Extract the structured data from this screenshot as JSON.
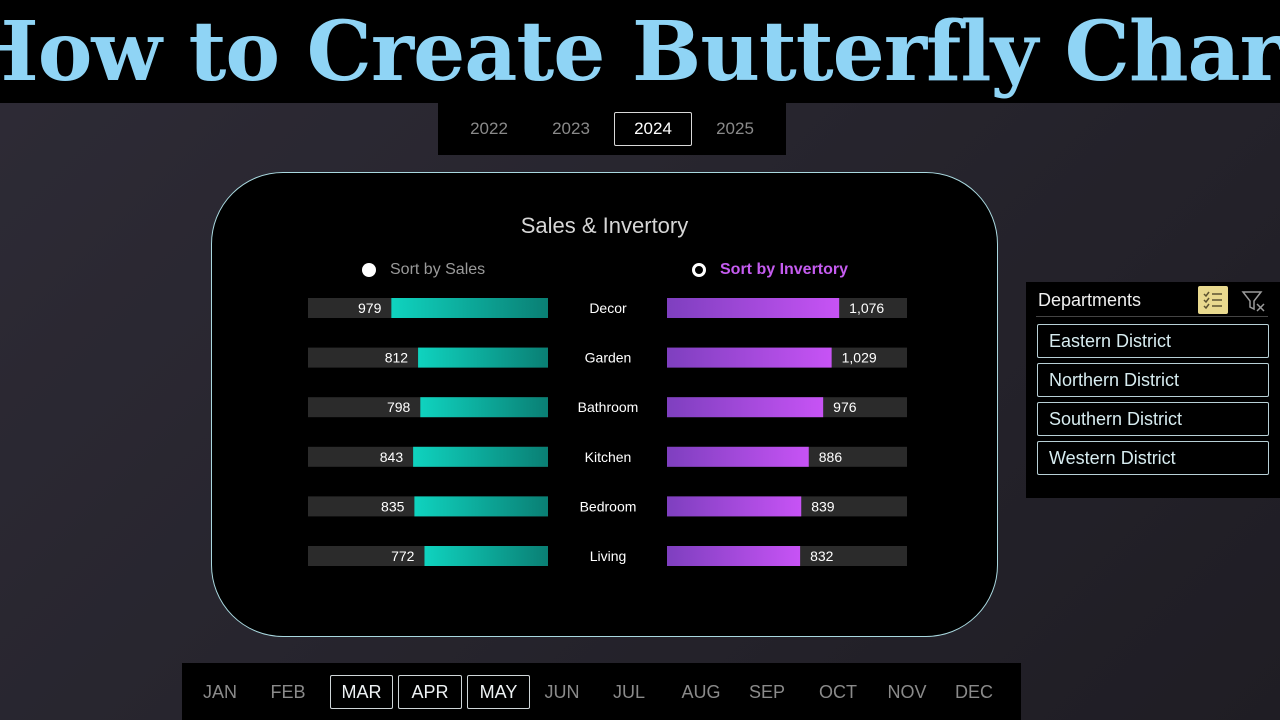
{
  "title": "How to Create Butterfly Chart",
  "years": {
    "items": [
      "2022",
      "2023",
      "2024",
      "2025"
    ],
    "selected": "2024"
  },
  "chart_title": "Sales & Invertory",
  "sort_options": {
    "sales_label": "Sort by Sales",
    "inventory_label": "Sort by Invertory",
    "active": "inventory"
  },
  "chart_data": {
    "type": "bar",
    "title": "Sales & Invertory",
    "categories": [
      "Decor",
      "Garden",
      "Bathroom",
      "Kitchen",
      "Bedroom",
      "Living"
    ],
    "series": [
      {
        "name": "Sales",
        "values": [
          979,
          812,
          798,
          843,
          835,
          772
        ],
        "labels": [
          "979",
          "812",
          "798",
          "843",
          "835",
          "772"
        ],
        "color": "#14c8b3",
        "direction": "left"
      },
      {
        "name": "Invertory",
        "values": [
          1076,
          1029,
          976,
          886,
          839,
          832
        ],
        "labels": [
          "1,076",
          "1,029",
          "976",
          "886",
          "839",
          "832"
        ],
        "color": "#c450f2",
        "direction": "right"
      }
    ],
    "xlim": [
      0,
      1500
    ],
    "grid": false,
    "colors": {
      "track": "#2b2b2b",
      "sales_start": "#0fd3bf",
      "sales_end": "#0a7f74",
      "inv_start": "#7e3fbf",
      "inv_end": "#c753f5"
    }
  },
  "departments": {
    "header": "Departments",
    "icons": {
      "multi_select": "multi-select-icon",
      "clear_filter": "clear-filter-icon"
    },
    "items": [
      "Eastern District",
      "Northern District",
      "Southern District",
      "Western District"
    ]
  },
  "months": {
    "items": [
      "JAN",
      "FEB",
      "MAR",
      "APR",
      "MAY",
      "JUN",
      "JUL",
      "AUG",
      "SEP",
      "OCT",
      "NOV",
      "DEC"
    ],
    "selected": [
      "MAR",
      "APR",
      "MAY"
    ]
  }
}
